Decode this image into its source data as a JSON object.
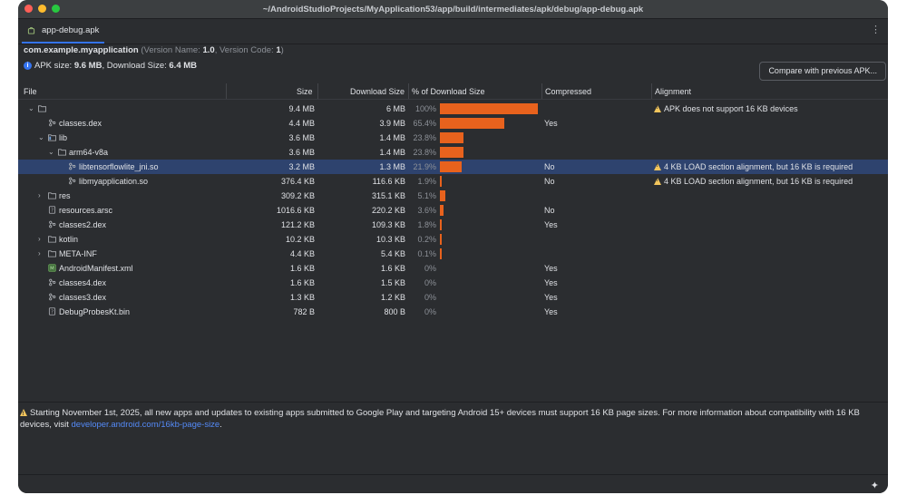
{
  "window": {
    "title": "~/AndroidStudioProjects/MyApplication53/app/build/intermediates/apk/debug/app-debug.apk"
  },
  "tab": {
    "label": "app-debug.apk",
    "menu_glyph": "⋮"
  },
  "header": {
    "package": "com.example.myapplication",
    "version_prefix": "(Version Name: ",
    "version_name": "1.0",
    "version_mid": ", Version Code: ",
    "version_code": "1",
    "version_suffix": ")",
    "apk_size_label": "APK size: ",
    "apk_size": "9.6 MB",
    "download_size_label": ", Download Size: ",
    "download_size": "6.4 MB"
  },
  "compare_button": {
    "label": "Compare with previous APK..."
  },
  "columns": {
    "file": "File",
    "size": "Size",
    "download_size": "Download Size",
    "pct": "% of Download Size",
    "compressed": "Compressed",
    "alignment": "Alignment"
  },
  "rows": [
    {
      "indent": 0,
      "arrow": "⌄",
      "icon": "folder",
      "name": "",
      "size": "9.4 MB",
      "download": "6 MB",
      "pct": "100%",
      "pct_value": 100,
      "compressed": "",
      "alignment": "APK does not support 16 KB devices",
      "warn": true
    },
    {
      "indent": 1,
      "arrow": "",
      "icon": "dex",
      "name": "classes.dex",
      "size": "4.4 MB",
      "download": "3.9 MB",
      "pct": "65.4%",
      "pct_value": 65.4,
      "compressed": "Yes",
      "alignment": "",
      "warn": false
    },
    {
      "indent": 1,
      "arrow": "⌄",
      "icon": "lib",
      "name": "lib",
      "size": "3.6 MB",
      "download": "1.4 MB",
      "pct": "23.8%",
      "pct_value": 23.8,
      "compressed": "",
      "alignment": "",
      "warn": false
    },
    {
      "indent": 2,
      "arrow": "⌄",
      "icon": "folder",
      "name": "arm64-v8a",
      "size": "3.6 MB",
      "download": "1.4 MB",
      "pct": "23.8%",
      "pct_value": 23.8,
      "compressed": "",
      "alignment": "",
      "warn": false
    },
    {
      "indent": 3,
      "arrow": "",
      "icon": "so",
      "name": "libtensorflowlite_jni.so",
      "size": "3.2 MB",
      "download": "1.3 MB",
      "pct": "21.9%",
      "pct_value": 21.9,
      "compressed": "No",
      "alignment": "4 KB LOAD section alignment, but 16 KB is required",
      "warn": true,
      "selected": true
    },
    {
      "indent": 3,
      "arrow": "",
      "icon": "so",
      "name": "libmyapplication.so",
      "size": "376.4 KB",
      "download": "116.6 KB",
      "pct": "1.9%",
      "pct_value": 1.9,
      "compressed": "No",
      "alignment": "4 KB LOAD section alignment, but 16 KB is required",
      "warn": true
    },
    {
      "indent": 1,
      "arrow": "›",
      "icon": "folder",
      "name": "res",
      "size": "309.2 KB",
      "download": "315.1 KB",
      "pct": "5.1%",
      "pct_value": 5.1,
      "compressed": "",
      "alignment": "",
      "warn": false
    },
    {
      "indent": 1,
      "arrow": "",
      "icon": "file",
      "name": "resources.arsc",
      "size": "1016.6 KB",
      "download": "220.2 KB",
      "pct": "3.6%",
      "pct_value": 3.6,
      "compressed": "No",
      "alignment": "",
      "warn": false
    },
    {
      "indent": 1,
      "arrow": "",
      "icon": "dex",
      "name": "classes2.dex",
      "size": "121.2 KB",
      "download": "109.3 KB",
      "pct": "1.8%",
      "pct_value": 1.8,
      "compressed": "Yes",
      "alignment": "",
      "warn": false
    },
    {
      "indent": 1,
      "arrow": "›",
      "icon": "folder",
      "name": "kotlin",
      "size": "10.2 KB",
      "download": "10.3 KB",
      "pct": "0.2%",
      "pct_value": 0.2,
      "compressed": "",
      "alignment": "",
      "warn": false
    },
    {
      "indent": 1,
      "arrow": "›",
      "icon": "folder",
      "name": "META-INF",
      "size": "4.4 KB",
      "download": "5.4 KB",
      "pct": "0.1%",
      "pct_value": 0.1,
      "compressed": "",
      "alignment": "",
      "warn": false
    },
    {
      "indent": 1,
      "arrow": "",
      "icon": "manifest",
      "name": "AndroidManifest.xml",
      "size": "1.6 KB",
      "download": "1.6 KB",
      "pct": "0%",
      "pct_value": 0,
      "compressed": "Yes",
      "alignment": "",
      "warn": false
    },
    {
      "indent": 1,
      "arrow": "",
      "icon": "dex",
      "name": "classes4.dex",
      "size": "1.6 KB",
      "download": "1.5 KB",
      "pct": "0%",
      "pct_value": 0,
      "compressed": "Yes",
      "alignment": "",
      "warn": false
    },
    {
      "indent": 1,
      "arrow": "",
      "icon": "dex",
      "name": "classes3.dex",
      "size": "1.3 KB",
      "download": "1.2 KB",
      "pct": "0%",
      "pct_value": 0,
      "compressed": "Yes",
      "alignment": "",
      "warn": false
    },
    {
      "indent": 1,
      "arrow": "",
      "icon": "file",
      "name": "DebugProbesKt.bin",
      "size": "782 B",
      "download": "800 B",
      "pct": "0%",
      "pct_value": 0,
      "compressed": "Yes",
      "alignment": "",
      "warn": false
    }
  ],
  "notice": {
    "text": "Starting November 1st, 2025, all new apps and updates to existing apps submitted to Google Play and targeting Android 15+ devices must support 16 KB page sizes. For more information about compatibility with 16 KB devices, visit ",
    "link": "developer.android.com/16kb-page-size",
    "end": "."
  },
  "colors": {
    "bar": "#e8621d",
    "selected_row": "#2e436e",
    "link": "#548af7",
    "warning": "#f2c55c"
  }
}
